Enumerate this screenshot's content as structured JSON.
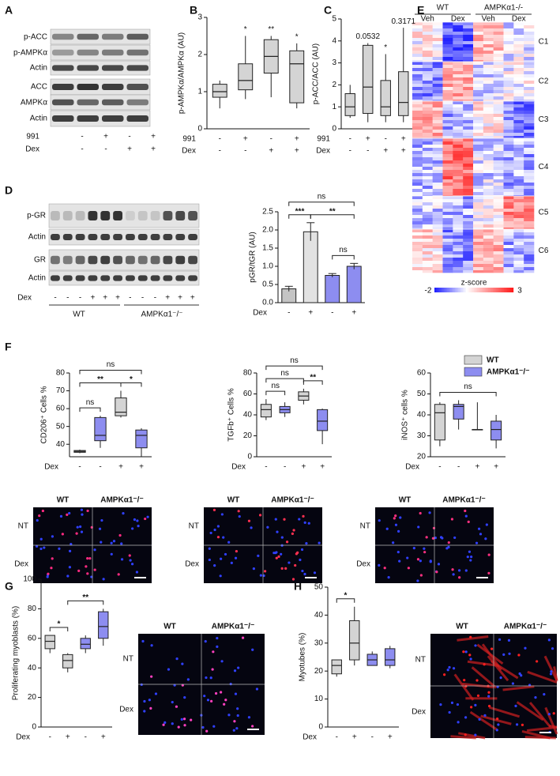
{
  "figure": {
    "panel_letters": [
      "A",
      "B",
      "C",
      "D",
      "E",
      "F",
      "G",
      "H"
    ],
    "A": {
      "rows": [
        "p-ACC",
        "p-AMPKα",
        "Actin",
        "ACC",
        "AMPKα",
        "Actin"
      ],
      "conditions": [
        {
          "name": "991",
          "signs": [
            "-",
            "+",
            "-",
            "+"
          ]
        },
        {
          "name": "Dex",
          "signs": [
            "-",
            "-",
            "+",
            "+"
          ]
        }
      ]
    },
    "D": {
      "rows": [
        "p-GR",
        "Actin",
        "GR",
        "Actin"
      ],
      "conditions": [
        {
          "name": "Dex",
          "signs": [
            "-",
            "-",
            "-",
            "+",
            "+",
            "+",
            "-",
            "-",
            "-",
            "+",
            "+",
            "+"
          ]
        }
      ],
      "groups": [
        "WT",
        "AMPKα1⁻/⁻"
      ]
    },
    "E": {
      "groups": [
        "WT",
        "AMPKα1-/-"
      ],
      "conditions": [
        "Veh",
        "Dex",
        "Veh",
        "Dex"
      ],
      "clusters": [
        "C1",
        "C2",
        "C3",
        "C4",
        "C5",
        "C6"
      ],
      "colorbar": {
        "title": "z-score",
        "ticks": [
          -2,
          3
        ]
      }
    },
    "legend_F": [
      {
        "name": "WT",
        "color": "#d4d4d4"
      },
      {
        "name": "AMPKα1⁻/⁻",
        "color": "#8d8df0"
      }
    ],
    "micrographs": [
      {
        "columns": [
          "WT",
          "AMPKα1⁻/⁻"
        ],
        "rows": [
          "NT",
          "Dex"
        ]
      },
      {
        "columns": [
          "WT",
          "AMPKα1⁻/⁻"
        ],
        "rows": [
          "NT",
          "Dex"
        ]
      },
      {
        "columns": [
          "WT",
          "AMPKα1⁻/⁻"
        ],
        "rows": [
          "NT",
          "Dex"
        ]
      },
      {
        "columns": [
          "WT",
          "AMPKα1⁻/⁻"
        ],
        "rows": [
          "NT",
          "Dex"
        ]
      },
      {
        "columns": [
          "WT",
          "AMPKα1⁻/⁻"
        ],
        "rows": [
          "NT",
          "Dex"
        ]
      }
    ]
  },
  "chart_data": [
    {
      "type": "box",
      "ylabel": "p-AMPKα/AMPKα (AU)",
      "ylim": [
        0,
        3
      ],
      "yticks": [
        0,
        1,
        2,
        3
      ],
      "conditions": [
        {
          "name": "991",
          "signs": [
            "-",
            "+",
            "-",
            "+"
          ]
        },
        {
          "name": "Dex",
          "signs": [
            "-",
            "-",
            "+",
            "+"
          ]
        }
      ],
      "boxes": [
        {
          "min": 0.55,
          "q1": 0.85,
          "median": 1.0,
          "q3": 1.2,
          "max": 1.3,
          "color": "#d4d4d4"
        },
        {
          "min": 0.8,
          "q1": 1.05,
          "median": 1.3,
          "q3": 1.75,
          "max": 2.5,
          "color": "#d4d4d4",
          "label": "*"
        },
        {
          "min": 0.85,
          "q1": 1.5,
          "median": 1.95,
          "q3": 2.4,
          "max": 2.5,
          "color": "#d4d4d4",
          "label": "**"
        },
        {
          "min": 0.55,
          "q1": 0.7,
          "median": 1.75,
          "q3": 2.1,
          "max": 2.3,
          "color": "#d4d4d4",
          "label": "*"
        }
      ]
    },
    {
      "type": "box",
      "ylabel": "p-ACC/ACC (AU)",
      "ylim": [
        0,
        5
      ],
      "yticks": [
        0,
        1,
        2,
        3,
        4,
        5
      ],
      "conditions": [
        {
          "name": "991",
          "signs": [
            "-",
            "+",
            "-",
            "+"
          ]
        },
        {
          "name": "Dex",
          "signs": [
            "-",
            "-",
            "+",
            "+"
          ]
        }
      ],
      "boxes": [
        {
          "min": 0.5,
          "q1": 0.6,
          "median": 1.0,
          "q3": 1.6,
          "max": 2.0,
          "color": "#d4d4d4"
        },
        {
          "min": 0.3,
          "q1": 0.7,
          "median": 1.9,
          "q3": 3.8,
          "max": 3.9,
          "color": "#d4d4d4",
          "label": "0.0532"
        },
        {
          "min": 0.3,
          "q1": 0.6,
          "median": 1.0,
          "q3": 2.2,
          "max": 3.4,
          "color": "#d4d4d4",
          "label": "*"
        },
        {
          "min": 0.3,
          "q1": 0.6,
          "median": 1.2,
          "q3": 2.6,
          "max": 4.6,
          "color": "#d4d4d4",
          "label": "0.3171"
        }
      ]
    },
    {
      "type": "bar",
      "ylabel": "pGR/tGR (AU)",
      "ylim": [
        0,
        2.5
      ],
      "yticks": [
        {
          "value": 0,
          "label": "0.0"
        },
        {
          "value": 0.5,
          "label": "0.5"
        },
        {
          "value": 1,
          "label": "1.0"
        },
        {
          "value": 1.5,
          "label": "1.5"
        },
        {
          "value": 2,
          "label": "2.0"
        },
        {
          "value": 2.5,
          "label": "2.5"
        }
      ],
      "conditions": [
        {
          "name": "Dex",
          "signs": [
            "-",
            "+",
            "-",
            "+"
          ]
        }
      ],
      "values": [
        0.38,
        1.95,
        0.75,
        1.0
      ],
      "errors": [
        0.07,
        0.25,
        0.05,
        0.08
      ],
      "colors": [
        "#c4c4c4",
        "#e2e2e2",
        "#8d8df0",
        "#8d8df0"
      ],
      "brackets": [
        {
          "from": 2,
          "to": 3,
          "text": "ns"
        },
        {
          "from": 0,
          "to": 1,
          "text": "***"
        },
        {
          "from": 1,
          "to": 3,
          "text": "**"
        },
        {
          "from": 0,
          "to": 3,
          "text": "ns"
        }
      ]
    },
    {
      "type": "box",
      "ylabel": "CD206⁺ Cells %",
      "ylim": [
        33,
        80
      ],
      "yticks": [
        40,
        50,
        60,
        70,
        80
      ],
      "conditions": [
        {
          "name": "Dex",
          "signs": [
            "-",
            "-",
            "+",
            "+"
          ]
        }
      ],
      "boxes": [
        {
          "min": 35,
          "q1": 35.5,
          "median": 36,
          "q3": 36.5,
          "max": 37,
          "color": "#d4d4d4"
        },
        {
          "min": 38,
          "q1": 42,
          "median": 45,
          "q3": 55,
          "max": 56,
          "color": "#8d8df0"
        },
        {
          "min": 55,
          "q1": 56,
          "median": 58,
          "q3": 66,
          "max": 70,
          "color": "#d4d4d4"
        },
        {
          "min": 33,
          "q1": 38,
          "median": 45,
          "q3": 48,
          "max": 49,
          "color": "#8d8df0"
        }
      ],
      "brackets": [
        {
          "from": 0,
          "to": 1,
          "text": "ns"
        },
        {
          "from": 2,
          "to": 3,
          "text": "*"
        },
        {
          "from": 0,
          "to": 2,
          "text": "**"
        },
        {
          "from": 0,
          "to": 3,
          "text": "ns"
        }
      ]
    },
    {
      "type": "box",
      "ylabel": "TGFb⁺ Cells %",
      "ylim": [
        0,
        80
      ],
      "yticks": [
        0,
        20,
        40,
        60,
        80
      ],
      "conditions": [
        {
          "name": "Dex",
          "signs": [
            "-",
            "-",
            "+",
            "+"
          ]
        }
      ],
      "boxes": [
        {
          "min": 35,
          "q1": 38,
          "median": 45,
          "q3": 50,
          "max": 55,
          "color": "#d4d4d4"
        },
        {
          "min": 38,
          "q1": 42,
          "median": 45,
          "q3": 48,
          "max": 52,
          "color": "#8d8df0"
        },
        {
          "min": 50,
          "q1": 54,
          "median": 58,
          "q3": 62,
          "max": 65,
          "color": "#d4d4d4"
        },
        {
          "min": 12,
          "q1": 25,
          "median": 34,
          "q3": 45,
          "max": 46,
          "color": "#8d8df0"
        }
      ],
      "brackets": [
        {
          "from": 0,
          "to": 1,
          "text": "ns"
        },
        {
          "from": 2,
          "to": 3,
          "text": "**"
        },
        {
          "from": 0,
          "to": 2,
          "text": "ns"
        },
        {
          "from": 0,
          "to": 3,
          "text": "ns"
        }
      ]
    },
    {
      "type": "box",
      "ylabel": "iNOS⁺ cells %",
      "ylim": [
        20,
        60
      ],
      "yticks": [
        20,
        30,
        40,
        50,
        60
      ],
      "conditions": [
        {
          "name": "Dex",
          "signs": [
            "-",
            "-",
            "+",
            "+"
          ]
        }
      ],
      "boxes": [
        {
          "min": 25,
          "q1": 28,
          "median": 41,
          "q3": 45,
          "max": 46,
          "color": "#d4d4d4"
        },
        {
          "min": 33,
          "q1": 38,
          "median": 44,
          "q3": 45,
          "max": 47,
          "color": "#8d8df0"
        },
        {
          "min": 33,
          "q1": 33,
          "median": 33,
          "q3": 33,
          "max": 46,
          "color": "#d4d4d4"
        },
        {
          "min": 24,
          "q1": 28,
          "median": 33,
          "q3": 37,
          "max": 40,
          "color": "#8d8df0"
        }
      ],
      "brackets": [
        {
          "from": 0,
          "to": 3,
          "text": "ns"
        }
      ]
    },
    {
      "type": "box",
      "ylabel": "Proliferating myoblasts (%)",
      "ylim": [
        0,
        100
      ],
      "yticks": [
        0,
        20,
        40,
        60,
        80,
        100
      ],
      "conditions": [
        {
          "name": "Dex",
          "signs": [
            "-",
            "+",
            "-",
            "+"
          ]
        }
      ],
      "boxes": [
        {
          "min": 50,
          "q1": 53,
          "median": 58,
          "q3": 62,
          "max": 62,
          "color": "#d4d4d4"
        },
        {
          "min": 37,
          "q1": 40,
          "median": 45,
          "q3": 49,
          "max": 50,
          "color": "#d4d4d4"
        },
        {
          "min": 50,
          "q1": 53,
          "median": 56,
          "q3": 60,
          "max": 62,
          "color": "#8d8df0"
        },
        {
          "min": 55,
          "q1": 60,
          "median": 68,
          "q3": 78,
          "max": 80,
          "color": "#8d8df0"
        }
      ],
      "brackets": [
        {
          "from": 0,
          "to": 1,
          "text": "*"
        },
        {
          "from": 1,
          "to": 3,
          "text": "**"
        }
      ]
    },
    {
      "type": "box",
      "ylabel": "Myotubes (%)",
      "ylim": [
        0,
        50
      ],
      "yticks": [
        0,
        10,
        20,
        30,
        40,
        50
      ],
      "conditions": [
        {
          "name": "Dex",
          "signs": [
            "-",
            "+",
            "-",
            "+"
          ]
        }
      ],
      "boxes": [
        {
          "min": 18,
          "q1": 19,
          "median": 22,
          "q3": 24,
          "max": 24,
          "color": "#d4d4d4"
        },
        {
          "min": 22,
          "q1": 24,
          "median": 30,
          "q3": 38,
          "max": 43,
          "color": "#d4d4d4"
        },
        {
          "min": 22,
          "q1": 22,
          "median": 24,
          "q3": 26,
          "max": 27,
          "color": "#8d8df0"
        },
        {
          "min": 21,
          "q1": 22,
          "median": 24,
          "q3": 28,
          "max": 29,
          "color": "#8d8df0"
        }
      ],
      "brackets": [
        {
          "from": 0,
          "to": 1,
          "text": "*"
        }
      ]
    }
  ]
}
